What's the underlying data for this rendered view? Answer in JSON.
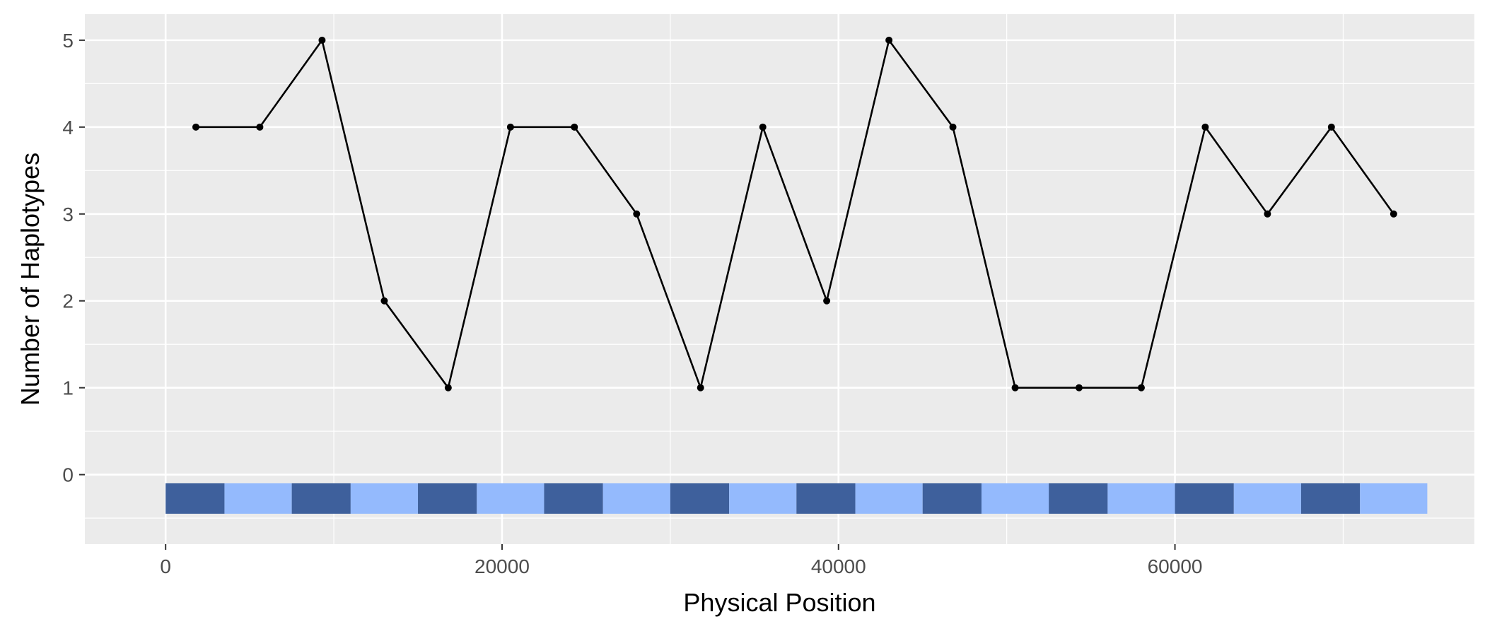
{
  "chart_data": {
    "type": "line",
    "title": "",
    "xlabel": "Physical Position",
    "ylabel": "Number of Haplotypes",
    "xlim": [
      -4800,
      77800
    ],
    "ylim": [
      -0.8,
      5.3
    ],
    "x_ticks": [
      0,
      20000,
      40000,
      60000
    ],
    "y_ticks": [
      0,
      1,
      2,
      3,
      4,
      5
    ],
    "grid": true,
    "panel_color": "#EBEBEB",
    "grid_color": "#FFFFFF",
    "line_color": "#000000",
    "series": [
      {
        "x": [
          1800,
          5600,
          9300,
          13000,
          16800,
          20500,
          24300,
          28000,
          31800,
          35500,
          39300,
          43000,
          46800,
          50500,
          54300,
          58000,
          61800,
          65500,
          69300,
          73000
        ],
        "y": [
          4,
          4,
          5,
          2,
          1,
          4,
          4,
          3,
          1,
          4,
          2,
          5,
          4,
          1,
          1,
          1,
          4,
          3,
          4,
          3
        ]
      }
    ],
    "blocks": {
      "y_range": [
        -0.45,
        -0.1
      ],
      "colors": [
        "#3E609C",
        "#94BAFD"
      ],
      "segments": [
        {
          "start": 0,
          "end": 3500,
          "shade": 0
        },
        {
          "start": 3500,
          "end": 7500,
          "shade": 1
        },
        {
          "start": 7500,
          "end": 11000,
          "shade": 0
        },
        {
          "start": 11000,
          "end": 15000,
          "shade": 1
        },
        {
          "start": 15000,
          "end": 18500,
          "shade": 0
        },
        {
          "start": 18500,
          "end": 22500,
          "shade": 1
        },
        {
          "start": 22500,
          "end": 26000,
          "shade": 0
        },
        {
          "start": 26000,
          "end": 30000,
          "shade": 1
        },
        {
          "start": 30000,
          "end": 33500,
          "shade": 0
        },
        {
          "start": 33500,
          "end": 37500,
          "shade": 1
        },
        {
          "start": 37500,
          "end": 41000,
          "shade": 0
        },
        {
          "start": 41000,
          "end": 45000,
          "shade": 1
        },
        {
          "start": 45000,
          "end": 48500,
          "shade": 0
        },
        {
          "start": 48500,
          "end": 52500,
          "shade": 1
        },
        {
          "start": 52500,
          "end": 56000,
          "shade": 0
        },
        {
          "start": 56000,
          "end": 60000,
          "shade": 1
        },
        {
          "start": 60000,
          "end": 63500,
          "shade": 0
        },
        {
          "start": 63500,
          "end": 67500,
          "shade": 1
        },
        {
          "start": 67500,
          "end": 71000,
          "shade": 0
        },
        {
          "start": 71000,
          "end": 75000,
          "shade": 1
        }
      ]
    }
  }
}
